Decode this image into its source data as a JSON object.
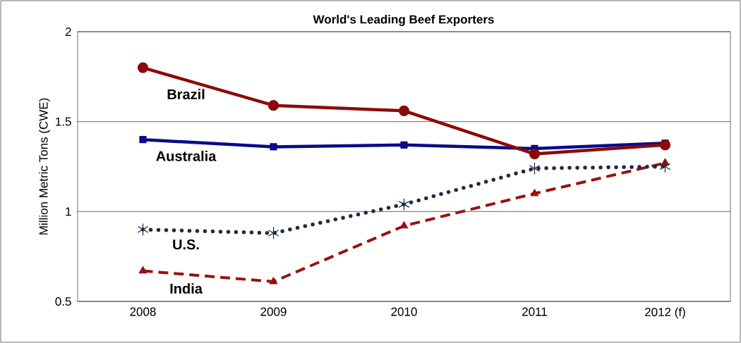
{
  "chart_data": {
    "type": "line",
    "title": "World's Leading Beef Exporters",
    "ylabel": "Million Metric Tons (CWE)",
    "categories": [
      "2008",
      "2009",
      "2010",
      "2011",
      "2012 (f)"
    ],
    "series": [
      {
        "name": "Brazil",
        "color": "#8b0a0a",
        "values": [
          1.8,
          1.59,
          1.56,
          1.32,
          1.37
        ],
        "marker": "circle",
        "line_style": "solid"
      },
      {
        "name": "Australia",
        "color": "#0a0a8a",
        "values": [
          1.4,
          1.36,
          1.37,
          1.35,
          1.38
        ],
        "marker": "square",
        "line_style": "solid"
      },
      {
        "name": "U.S.",
        "color": "#1f2a44",
        "values": [
          0.9,
          0.88,
          1.04,
          1.24,
          1.25
        ],
        "marker": "cross",
        "line_style": "dotted"
      },
      {
        "name": "India",
        "color": "#991111",
        "values": [
          0.67,
          0.61,
          0.92,
          1.1,
          1.27
        ],
        "marker": "triangle",
        "line_style": "dashed"
      }
    ],
    "ylim": [
      0.5,
      2
    ],
    "yticks": [
      0.5,
      1,
      1.5,
      2
    ],
    "grid": "y"
  }
}
